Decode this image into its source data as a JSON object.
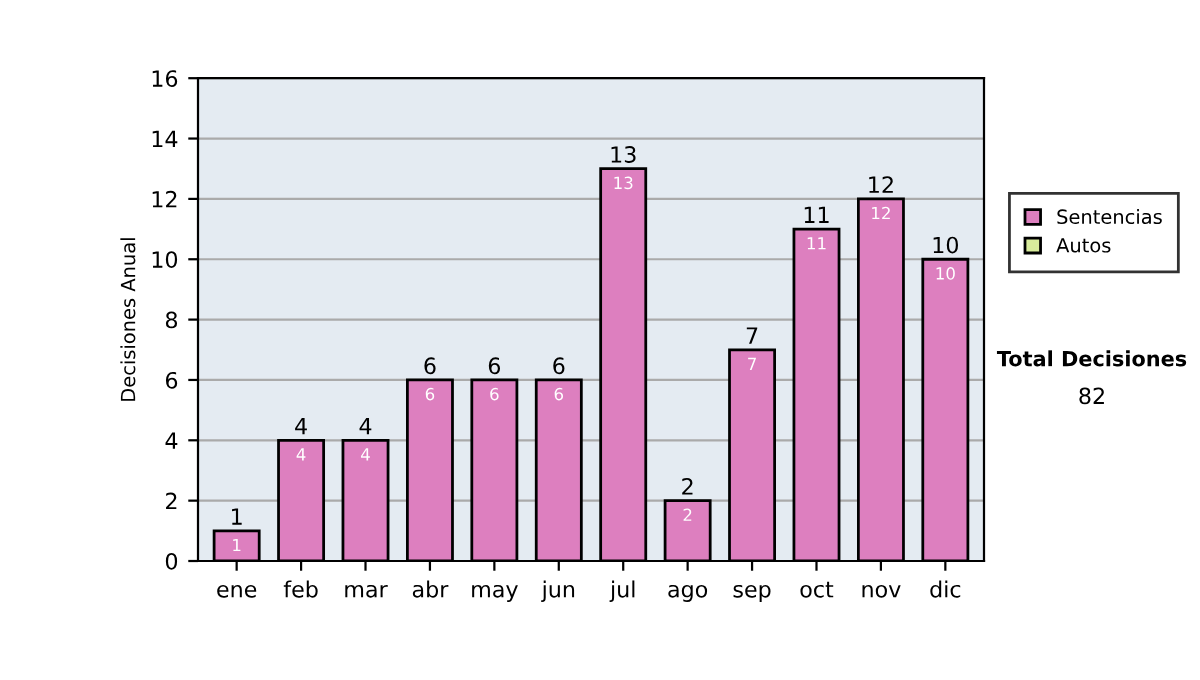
{
  "chart_data": {
    "type": "bar",
    "stacked": true,
    "ylabel": "Decisiones Anual",
    "categories": [
      "ene",
      "feb",
      "mar",
      "abr",
      "may",
      "jun",
      "jul",
      "ago",
      "sep",
      "oct",
      "nov",
      "dic"
    ],
    "series": [
      {
        "name": "Sentencias",
        "color": "#dd7fbf",
        "values": [
          1,
          4,
          4,
          6,
          6,
          6,
          13,
          2,
          7,
          11,
          12,
          10
        ]
      },
      {
        "name": "Autos",
        "color": "#d8ec9c",
        "values": [
          null,
          null,
          null,
          null,
          null,
          null,
          null,
          null,
          null,
          null,
          null,
          null
        ]
      }
    ],
    "totals": [
      "1",
      "4",
      "4",
      "6",
      "6",
      "6",
      "13",
      "2",
      "7",
      "11",
      "12",
      "10"
    ],
    "data_labels": true,
    "ylim": [
      0,
      16
    ],
    "yticks": [
      0,
      2,
      4,
      6,
      8,
      10,
      12,
      14,
      16
    ],
    "grid": "y",
    "legend": "right",
    "annotations": [
      "Total Decisiones",
      "82"
    ]
  }
}
